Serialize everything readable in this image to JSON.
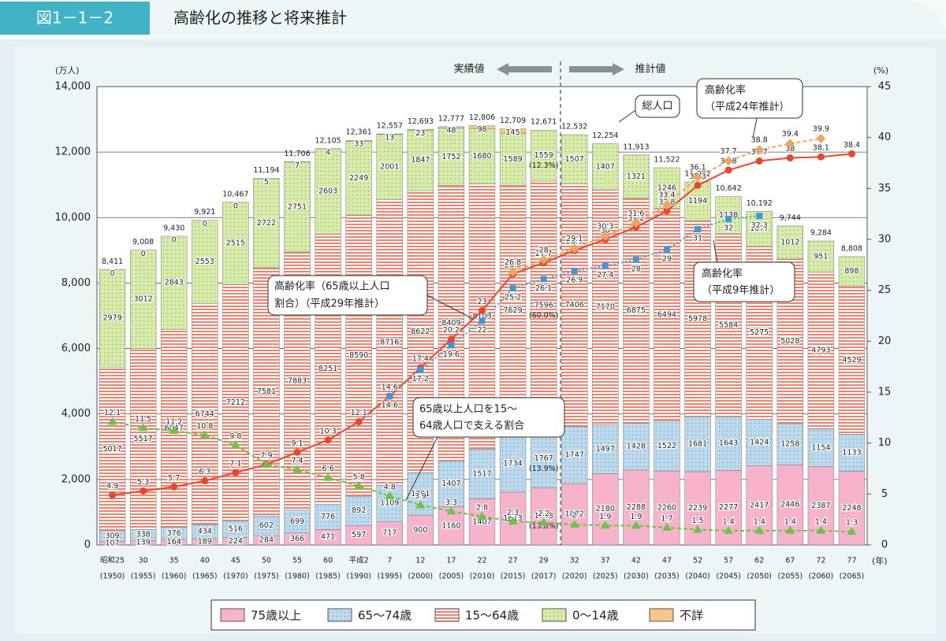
{
  "header": {
    "figure": "図1－1－2",
    "title": "高齢化の推移と将来推計"
  },
  "chart_data": {
    "type": "stacked_bar_line",
    "y_unit": "(万人)",
    "y2_unit": "(%)",
    "x_unit": "(年)",
    "categories": [
      "昭和25",
      "30",
      "35",
      "40",
      "45",
      "50",
      "55",
      "60",
      "平成2",
      "7",
      "12",
      "17",
      "22",
      "27",
      "29",
      "32",
      "37",
      "42",
      "47",
      "52",
      "57",
      "62",
      "67",
      "72",
      "77"
    ],
    "years": [
      "(1950)",
      "(1955)",
      "(1960)",
      "(1965)",
      "(1970)",
      "(1975)",
      "(1980)",
      "(1985)",
      "(1990)",
      "(1995)",
      "(2000)",
      "(2005)",
      "(2010)",
      "(2015)",
      "(2017)",
      "(2020)",
      "(2025)",
      "(2030)",
      "(2035)",
      "(2040)",
      "(2045)",
      "(2050)",
      "(2055)",
      "(2060)",
      "(2065)"
    ],
    "ylim": [
      0,
      14000
    ],
    "yticks": [
      0,
      {
        "value": 2000,
        "label": "2,000"
      },
      {
        "value": 4000,
        "label": "4,000"
      },
      {
        "value": 6000,
        "label": "6,000"
      },
      {
        "value": 8000,
        "label": "8,000"
      },
      {
        "value": 10000,
        "label": "10,000"
      },
      {
        "value": 12000,
        "label": "12,000"
      },
      {
        "value": 14000,
        "label": "14,000"
      }
    ],
    "y2lim": [
      0,
      45
    ],
    "y2ticks": [
      0,
      5,
      10,
      15,
      20,
      25,
      30,
      35,
      40,
      45
    ],
    "grid": true,
    "series": [
      {
        "name": "75歳以上",
        "color": "#f7b3cc",
        "pattern": "solid",
        "values": [
          107,
          139,
          164,
          189,
          224,
          284,
          366,
          471,
          597,
          717,
          900,
          1160,
          1407,
          1613,
          1748,
          1872,
          2180,
          2288,
          2260,
          2239,
          2277,
          2417,
          2446,
          2387,
          2248
        ]
      },
      {
        "name": "65～74歳",
        "color": "#bcd9f2",
        "pattern": "dots",
        "values": [
          309,
          338,
          376,
          434,
          516,
          602,
          699,
          776,
          892,
          1109,
          1301,
          1407,
          1517,
          1734,
          1767,
          1747,
          1497,
          1428,
          1522,
          1681,
          1643,
          1424,
          1258,
          1154,
          1133
        ]
      },
      {
        "name": "15～64歳",
        "color": "#ee8470",
        "pattern": "stripes",
        "values": [
          5017,
          5517,
          6047,
          6744,
          7212,
          7581,
          7883,
          8251,
          8590,
          8716,
          8622,
          8409,
          8103,
          7629,
          7596,
          7406,
          7170,
          6875,
          6494,
          5978,
          5584,
          5275,
          5028,
          4793,
          4529
        ]
      },
      {
        "name": "0～14歳",
        "color": "#d8ecaa",
        "pattern": "dots",
        "values": [
          2979,
          3012,
          2843,
          2553,
          2515,
          2722,
          2751,
          2603,
          2249,
          2001,
          1847,
          1752,
          1680,
          1589,
          1559,
          1507,
          1407,
          1321,
          1246,
          1194,
          1138,
          1077,
          1012,
          951,
          898
        ]
      },
      {
        "name": "不詳",
        "color": "#f5c68a",
        "pattern": "solid",
        "values": [
          0,
          0,
          0,
          0,
          0,
          5,
          7,
          4,
          33,
          13,
          23,
          48,
          98,
          145,
          null,
          null,
          null,
          null,
          null,
          null,
          null,
          null,
          null,
          null,
          null
        ]
      }
    ],
    "totals": [
      8411,
      9008,
      9430,
      9921,
      10467,
      11194,
      11706,
      12105,
      12361,
      12557,
      12693,
      12777,
      12806,
      12709,
      12671,
      12532,
      12254,
      11913,
      11522,
      11092,
      10642,
      10192,
      9744,
      9284,
      8808
    ],
    "totals_labels": [
      "8,411",
      "9,008",
      "9,430",
      "9,921",
      "10,467",
      "11,194",
      "11,706",
      "12,105",
      "12,361",
      "12,557",
      "12,693",
      "12,777",
      "12,806",
      "12,709",
      "12,671",
      "12,532",
      "12,254",
      "11,913",
      "11,522",
      "11,092",
      "10,642",
      "10,192",
      "9,744",
      "9,284",
      "8,808"
    ],
    "line_series": [
      {
        "color": "#e8472c",
        "marker": "circle",
        "dash": "solid",
        "values": [
          4.9,
          5.3,
          5.7,
          6.3,
          7.1,
          7.9,
          9.1,
          10.3,
          12.1,
          14.6,
          17.4,
          20.2,
          23.0,
          26.6,
          27.7,
          28.9,
          30.0,
          31.2,
          32.8,
          35.3,
          36.8,
          37.7,
          38.0,
          38.1,
          38.4
        ],
        "axis": "y2"
      },
      {
        "color": "#eea55e",
        "marker": "diamond",
        "dash": "dashed",
        "values": [
          null,
          null,
          null,
          null,
          null,
          null,
          null,
          null,
          null,
          null,
          null,
          null,
          null,
          26.8,
          28.0,
          29.1,
          30.3,
          31.6,
          33.4,
          36.1,
          37.7,
          38.8,
          39.4,
          39.9,
          null
        ],
        "axis": "y2"
      },
      {
        "color": "#3a9ad9",
        "marker": "square",
        "dash": "dotted",
        "values": [
          null,
          null,
          null,
          null,
          null,
          null,
          null,
          null,
          null,
          14.6,
          17.2,
          19.6,
          22.0,
          25.2,
          26.1,
          26.9,
          27.4,
          28.0,
          29.0,
          31.0,
          32.0,
          32.3,
          null,
          null,
          null
        ],
        "axis": "y2"
      },
      {
        "color": "#6cc24a",
        "marker": "triangle",
        "dash": "dashed",
        "values": [
          12.1,
          11.5,
          11.2,
          10.8,
          9.8,
          7.9,
          7.4,
          6.6,
          5.8,
          4.8,
          3.9,
          3.3,
          2.8,
          2.3,
          2.2,
          2.0,
          1.9,
          1.9,
          1.7,
          1.5,
          1.4,
          1.4,
          1.4,
          1.4,
          1.3
        ],
        "axis": "y2"
      }
    ],
    "share_labels": [
      "(12.3%)",
      "(60.0%)",
      "(13.9%)",
      "(13.8%)"
    ],
    "annotations": [
      {
        "lines": [
          "実績値"
        ]
      },
      {
        "lines": [
          "推計値"
        ]
      },
      {
        "lines": [
          "総人口"
        ]
      },
      {
        "lines": [
          "高齢化率",
          "（平成24年推計）"
        ]
      },
      {
        "lines": [
          "高齢化率（65歳以上人口",
          "割合）（平成29年推計）"
        ]
      },
      {
        "lines": [
          "65歳以上人口を15～",
          "64歳人口で支える割合"
        ]
      },
      {
        "lines": [
          "高齢化率",
          "（平成9年推計）"
        ]
      }
    ]
  }
}
